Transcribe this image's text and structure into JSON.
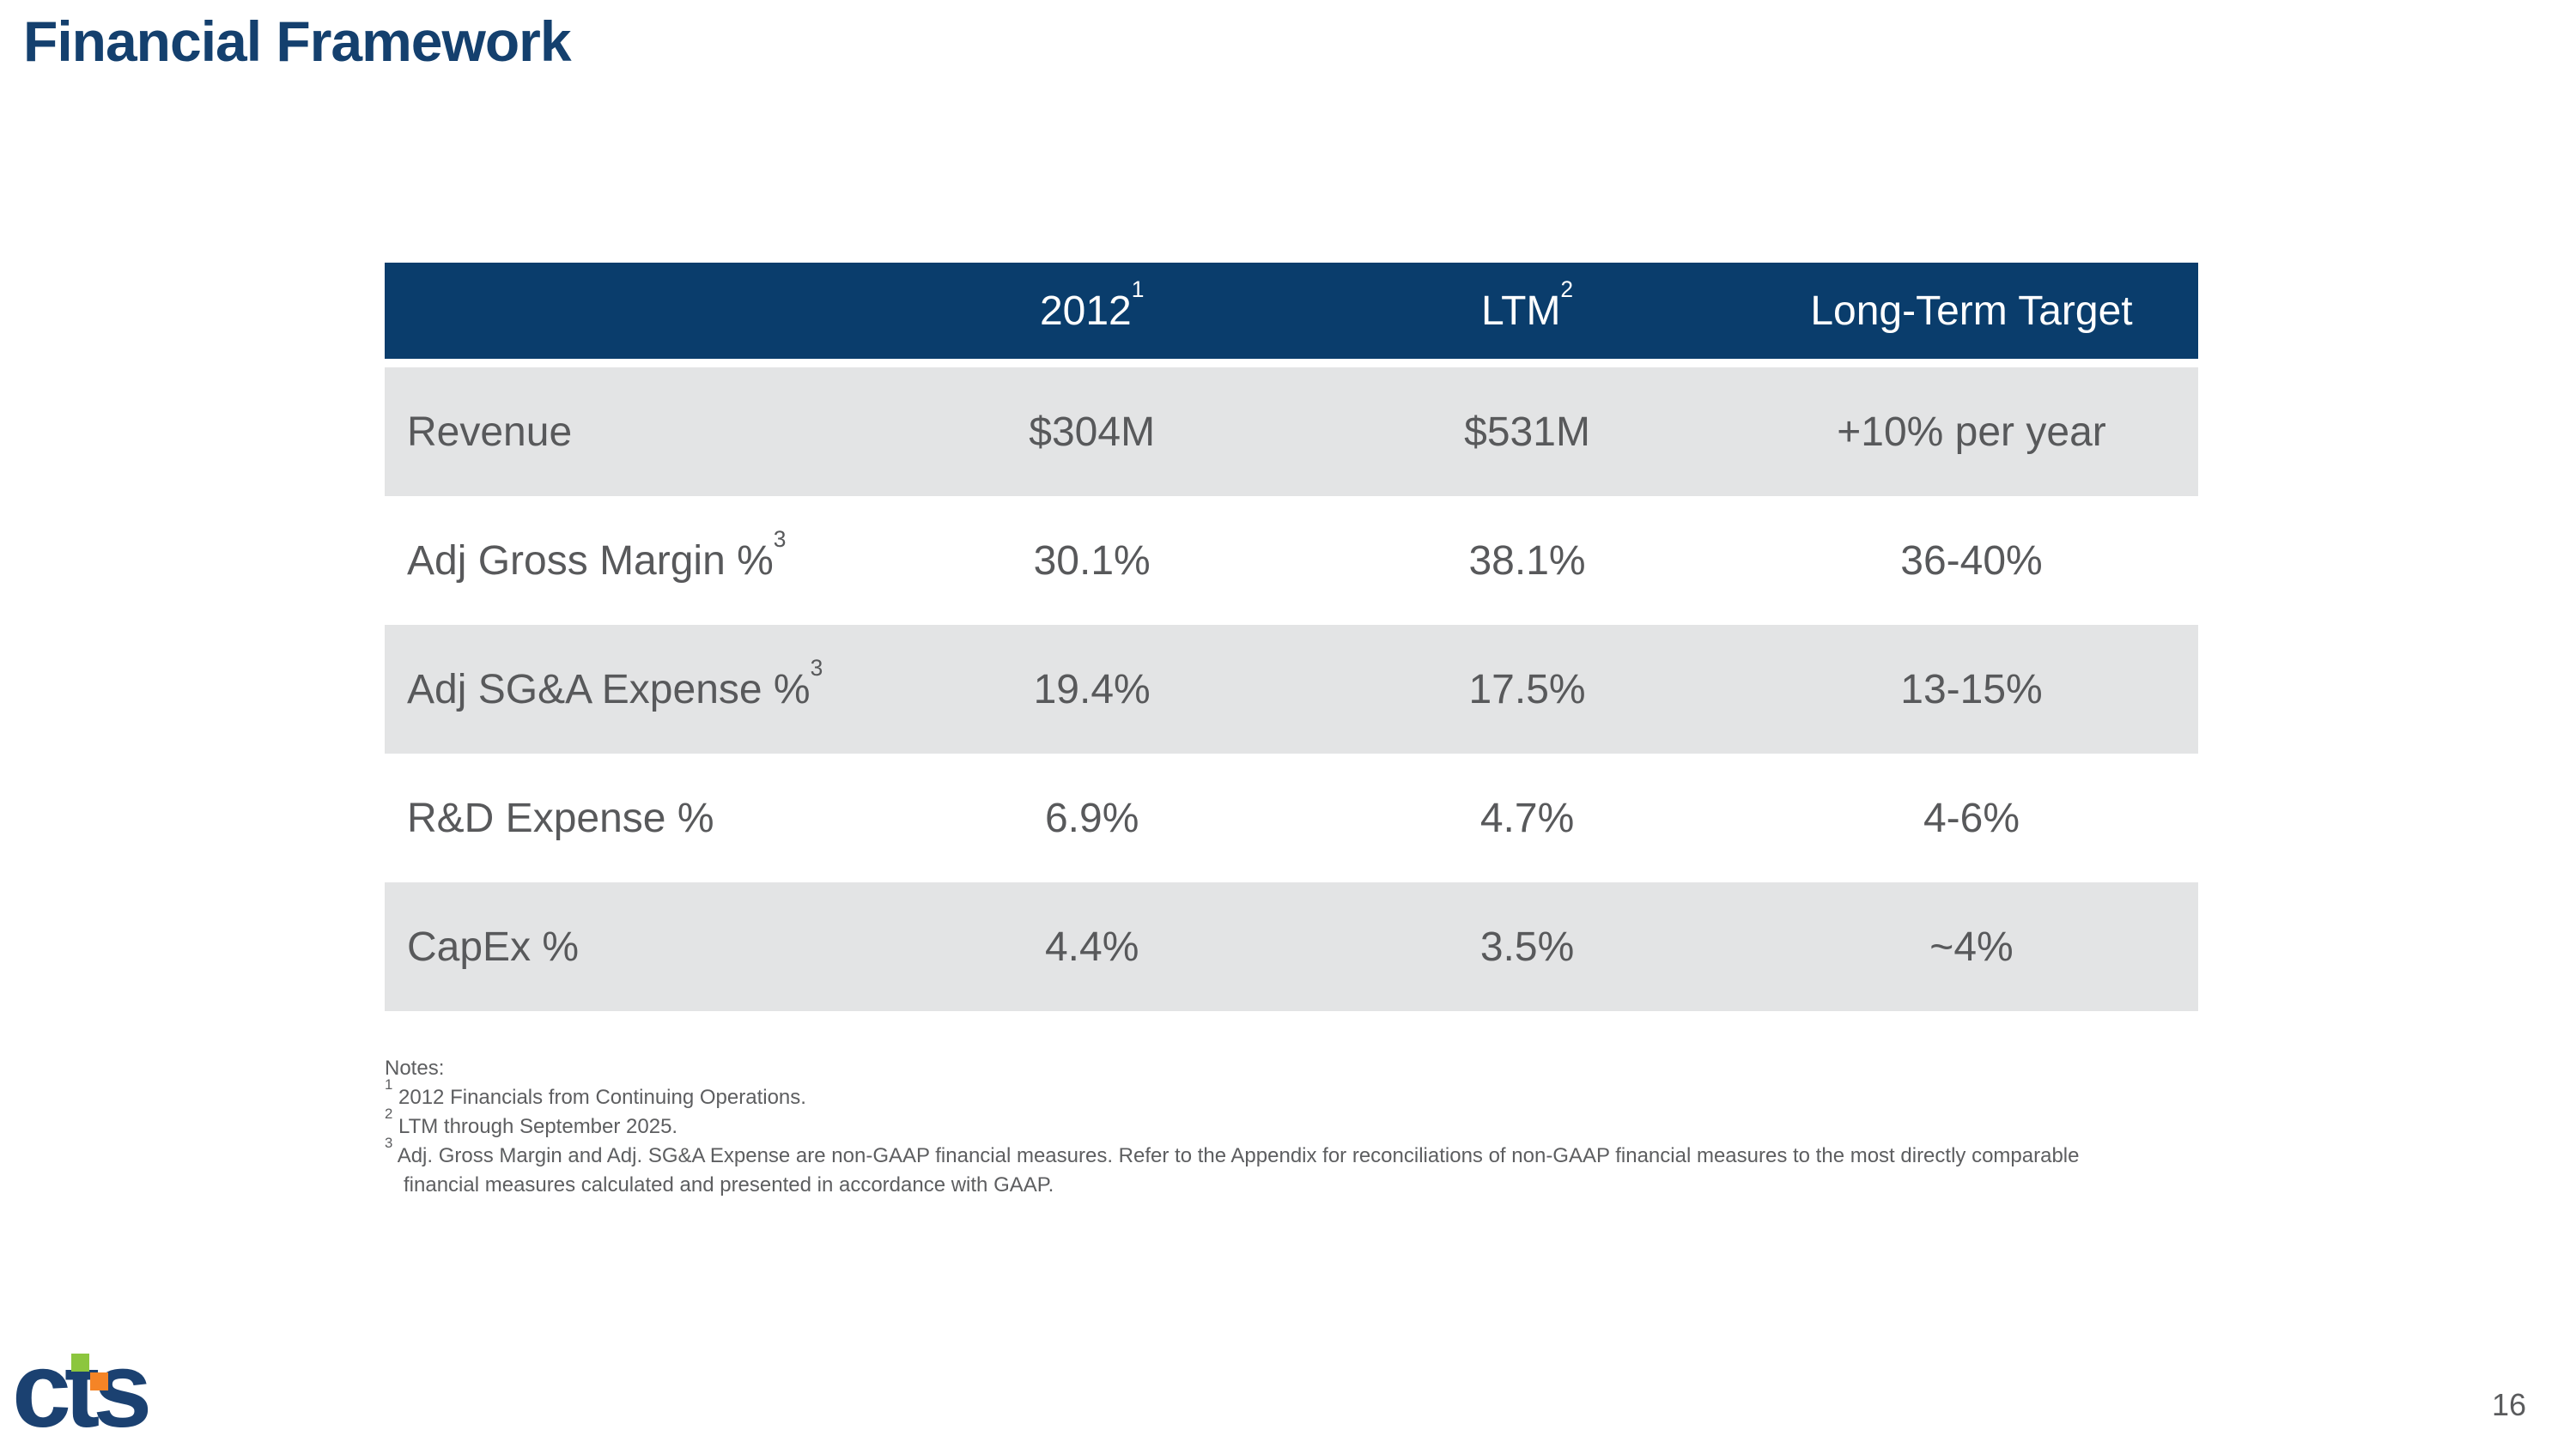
{
  "slide": {
    "title": "Financial Framework",
    "page_number": "16"
  },
  "colors": {
    "title_text": "#14406e",
    "table_header_bg": "#0a3d6c",
    "table_header_text": "#ffffff",
    "table_alt_row_bg": "#e3e4e5",
    "table_text": "#58595b",
    "logo_navy": "#1b4171",
    "logo_green": "#8cc63e",
    "logo_orange": "#f58426"
  },
  "table": {
    "columns": [
      {
        "label": "",
        "sup": ""
      },
      {
        "label": "2012",
        "sup": "1"
      },
      {
        "label": "LTM",
        "sup": "2"
      },
      {
        "label": "Long-Term Target",
        "sup": ""
      }
    ],
    "rows": [
      {
        "label": "Revenue",
        "sup": "",
        "values": [
          "$304M",
          "$531M",
          "+10% per year"
        ]
      },
      {
        "label": "Adj Gross Margin %",
        "sup": "3",
        "values": [
          "30.1%",
          "38.1%",
          "36-40%"
        ]
      },
      {
        "label": "Adj SG&A Expense %",
        "sup": "3",
        "values": [
          "19.4%",
          "17.5%",
          "13-15%"
        ]
      },
      {
        "label": "R&D Expense %",
        "sup": "",
        "values": [
          "6.9%",
          "4.7%",
          "4-6%"
        ]
      },
      {
        "label": "CapEx %",
        "sup": "",
        "values": [
          "4.4%",
          "3.5%",
          "~4%"
        ]
      }
    ]
  },
  "notes": {
    "heading": "Notes:",
    "items": [
      {
        "sup": "1",
        "text": "2012 Financials from Continuing Operations."
      },
      {
        "sup": "2",
        "text": "LTM through September 2025."
      },
      {
        "sup": "3",
        "text": "Adj. Gross Margin and Adj. SG&A Expense are non-GAAP financial measures. Refer to the Appendix for reconciliations of non-GAAP financial measures to the most directly comparable financial measures calculated and presented in accordance with GAAP."
      }
    ]
  },
  "logo": {
    "text": "cts"
  }
}
